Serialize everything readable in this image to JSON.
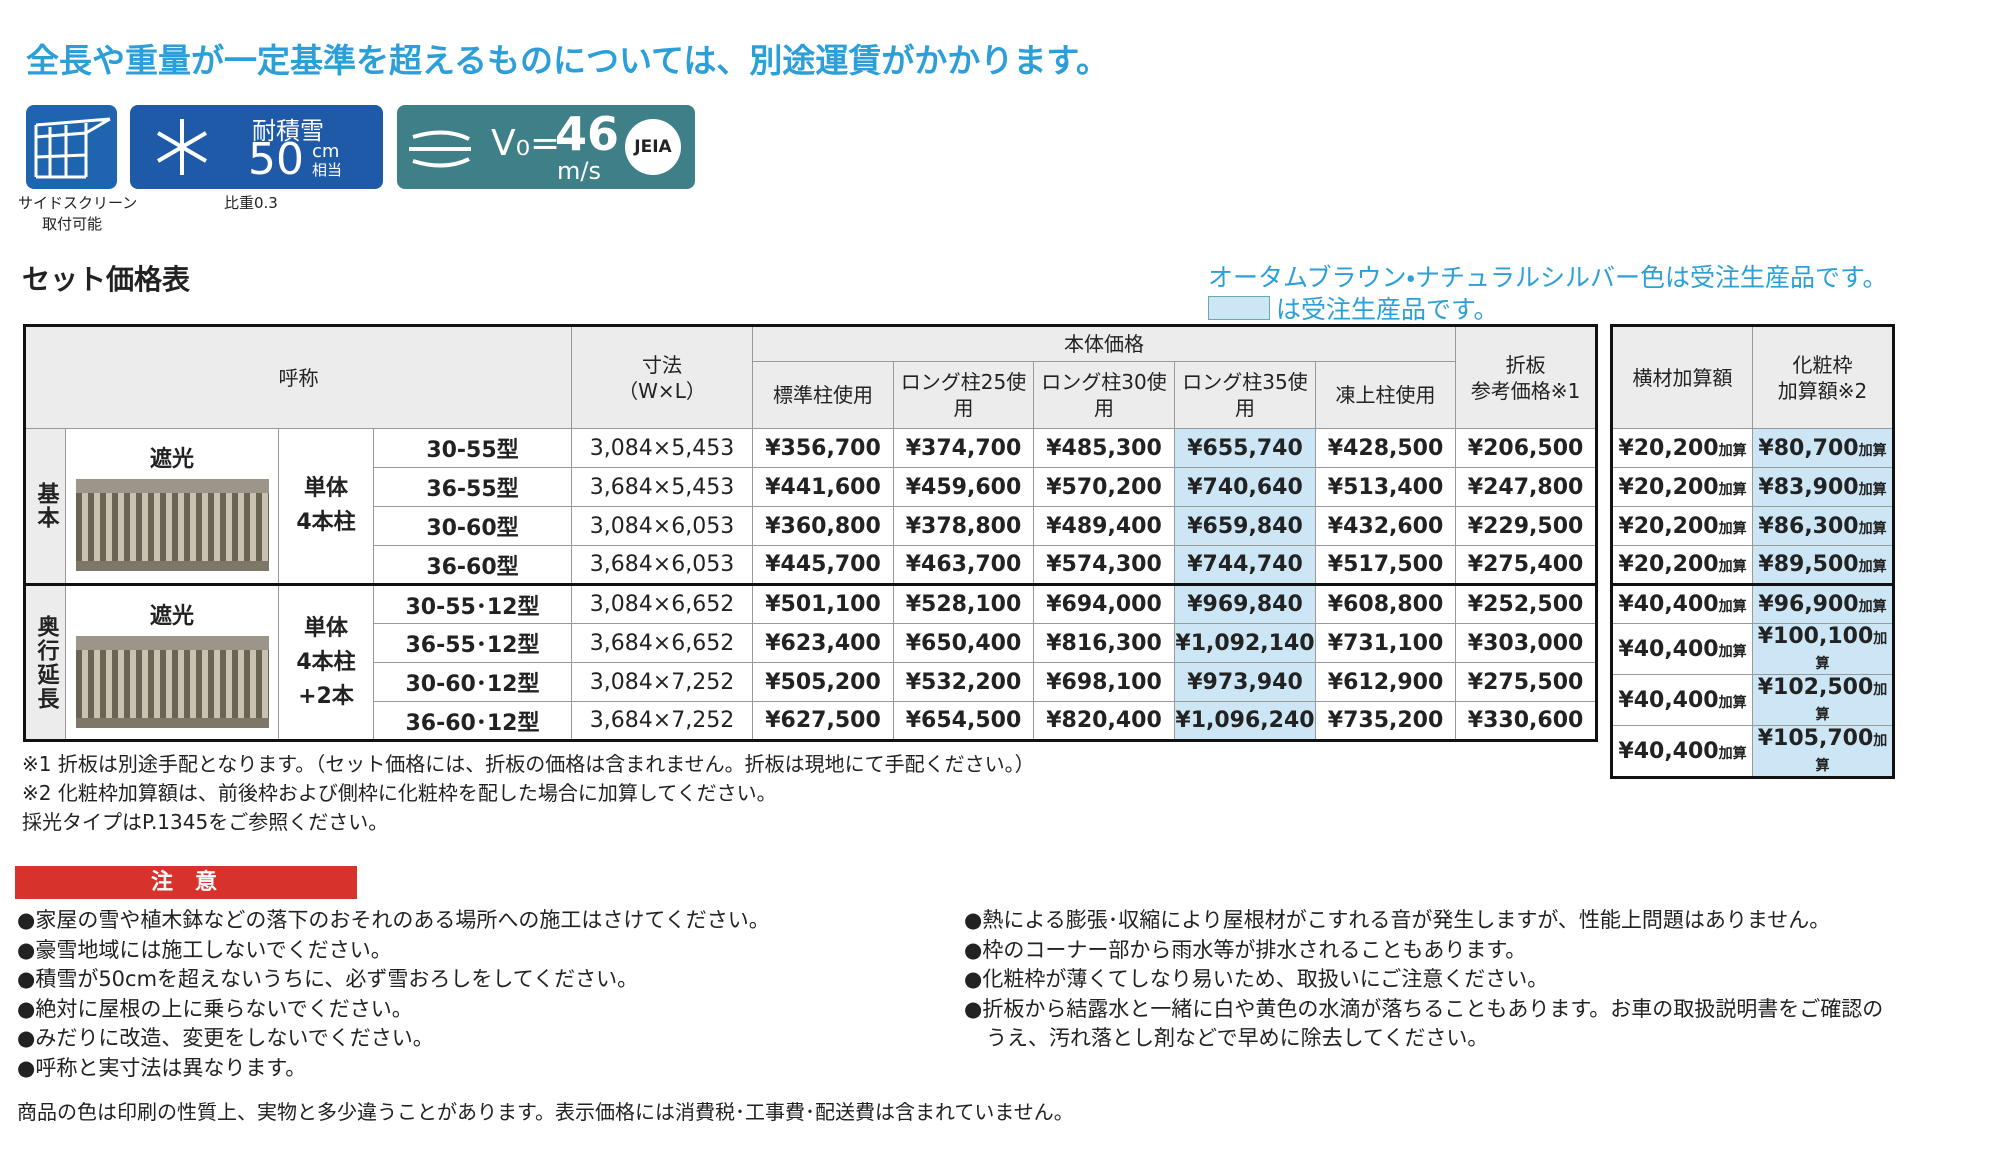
{
  "header": {
    "title": "全長や重量が一定基準を超えるものについては、別途運賃がかかります。"
  },
  "badges": {
    "side_screen": {
      "caption": [
        "サイドスクリーン",
        "取付可能"
      ]
    },
    "snow": {
      "label": "耐積雪",
      "value": "50",
      "unit": "cm",
      "unit_note": "相当",
      "caption": "比重0.3"
    },
    "wind": {
      "prefix": "V₀=",
      "value": "46",
      "unit": "m/s",
      "logo": "JEIA"
    }
  },
  "section": {
    "title": "セット価格表",
    "notice": "オータムブラウン・ナチュラルシルバー色は受注生産品です。",
    "legend": "は受注生産品です。"
  },
  "table": {
    "headers": {
      "name": "呼称",
      "size": [
        "寸法",
        "（W×L）"
      ],
      "body_price": "本体価格",
      "price_cols": [
        "標準柱使用",
        "ロング柱25使用",
        "ロング柱30使用",
        "ロング柱35使用",
        "凍上柱使用"
      ],
      "fold": [
        "折板",
        "参考価格※1"
      ],
      "beam": "横材加算額",
      "trim": [
        "化粧枠",
        "加算額※2"
      ]
    },
    "add_suffix": "加算",
    "groups": [
      {
        "label": "基本",
        "shade": "遮光",
        "post": [
          "単体",
          "4本柱"
        ],
        "rows": [
          [
            "30-55型",
            "3,084×5,453",
            "¥356,700",
            "¥374,700",
            "¥485,300",
            "¥655,740",
            "¥428,500",
            "¥206,500",
            "¥20,200",
            "¥80,700"
          ],
          [
            "36-55型",
            "3,684×5,453",
            "¥441,600",
            "¥459,600",
            "¥570,200",
            "¥740,640",
            "¥513,400",
            "¥247,800",
            "¥20,200",
            "¥83,900"
          ],
          [
            "30-60型",
            "3,084×6,053",
            "¥360,800",
            "¥378,800",
            "¥489,400",
            "¥659,840",
            "¥432,600",
            "¥229,500",
            "¥20,200",
            "¥86,300"
          ],
          [
            "36-60型",
            "3,684×6,053",
            "¥445,700",
            "¥463,700",
            "¥574,300",
            "¥744,740",
            "¥517,500",
            "¥275,400",
            "¥20,200",
            "¥89,500"
          ]
        ]
      },
      {
        "label": "奥行延長",
        "shade": "遮光",
        "post": [
          "単体",
          "4本柱",
          "+2本"
        ],
        "rows": [
          [
            "30-55･12型",
            "3,084×6,652",
            "¥501,100",
            "¥528,100",
            "¥694,000",
            "¥969,840",
            "¥608,800",
            "¥252,500",
            "¥40,400",
            "¥96,900"
          ],
          [
            "36-55･12型",
            "3,684×6,652",
            "¥623,400",
            "¥650,400",
            "¥816,300",
            "¥1,092,140",
            "¥731,100",
            "¥303,000",
            "¥40,400",
            "¥100,100"
          ],
          [
            "30-60･12型",
            "3,084×7,252",
            "¥505,200",
            "¥532,200",
            "¥698,100",
            "¥973,940",
            "¥612,900",
            "¥275,500",
            "¥40,400",
            "¥102,500"
          ],
          [
            "36-60･12型",
            "3,684×7,252",
            "¥627,500",
            "¥654,500",
            "¥820,400",
            "¥1,096,240",
            "¥735,200",
            "¥330,600",
            "¥40,400",
            "¥105,700"
          ]
        ]
      }
    ]
  },
  "notes": [
    "※1 折板は別途手配となります。（セット価格には、折板の価格は含まれません。折板は現地にて手配ください。）",
    "※2 化粧枠加算額は、前後枠および側枠に化粧枠を配した場合に加算してください。",
    "採光タイプはP.1345をご参照ください。"
  ],
  "caution": {
    "title": "注　意",
    "left": [
      "●家屋の雪や植木鉢などの落下のおそれのある場所への施工はさけてください。",
      "●豪雪地域には施工しないでください。",
      "●積雪が50cmを超えないうちに、必ず雪おろしをしてください。",
      "●絶対に屋根の上に乗らないでください。",
      "●みだりに改造、変更をしないでください。",
      "●呼称と実寸法は異なります。"
    ],
    "right": [
      "●熱による膨張･収縮により屋根材がこすれる音が発生しますが、性能上問題はありません。",
      "●枠のコーナー部から雨水等が排水されることもあります。",
      "●化粧枠が薄くてしなり易いため、取扱いにご注意ください。",
      "●折板から結露水と一緒に白や黄色の水滴が落ちることもあります。お車の取扱説明書をご確認のうえ、汚れ落とし剤などで早めに除去してください。"
    ]
  },
  "footer": "商品の色は印刷の性質上、実物と多少違うことがあります。表示価格には消費税･工事費･配送費は含まれていません。"
}
